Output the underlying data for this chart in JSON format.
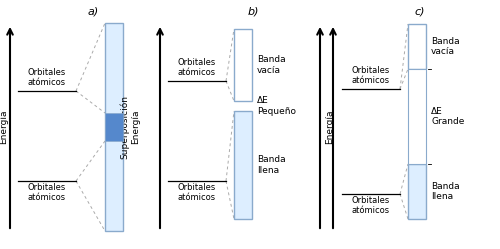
{
  "panel_a_label": "a)",
  "panel_b_label": "b)",
  "panel_c_label": "c)",
  "energia_label": "Energía",
  "superposicion_label": "Superposición\nEnergía",
  "orbitales_atomicos": "Orbitales\natómicos",
  "banda_vacia": "Banda\nvacía",
  "banda_llena": "Banda\nllena",
  "delta_e_pequeno": "ΔE\nPequeño",
  "delta_e_grande": "ΔE\nGrande",
  "bg_color": "#ffffff",
  "box_edge_color": "#8aaacc",
  "box_fill_light": "#ddeeff",
  "box_fill_blue": "#5588cc",
  "box_fill_white": "#ffffff",
  "text_color": "#000000",
  "dashed_color": "#aaaaaa",
  "arrow_color": "#000000"
}
